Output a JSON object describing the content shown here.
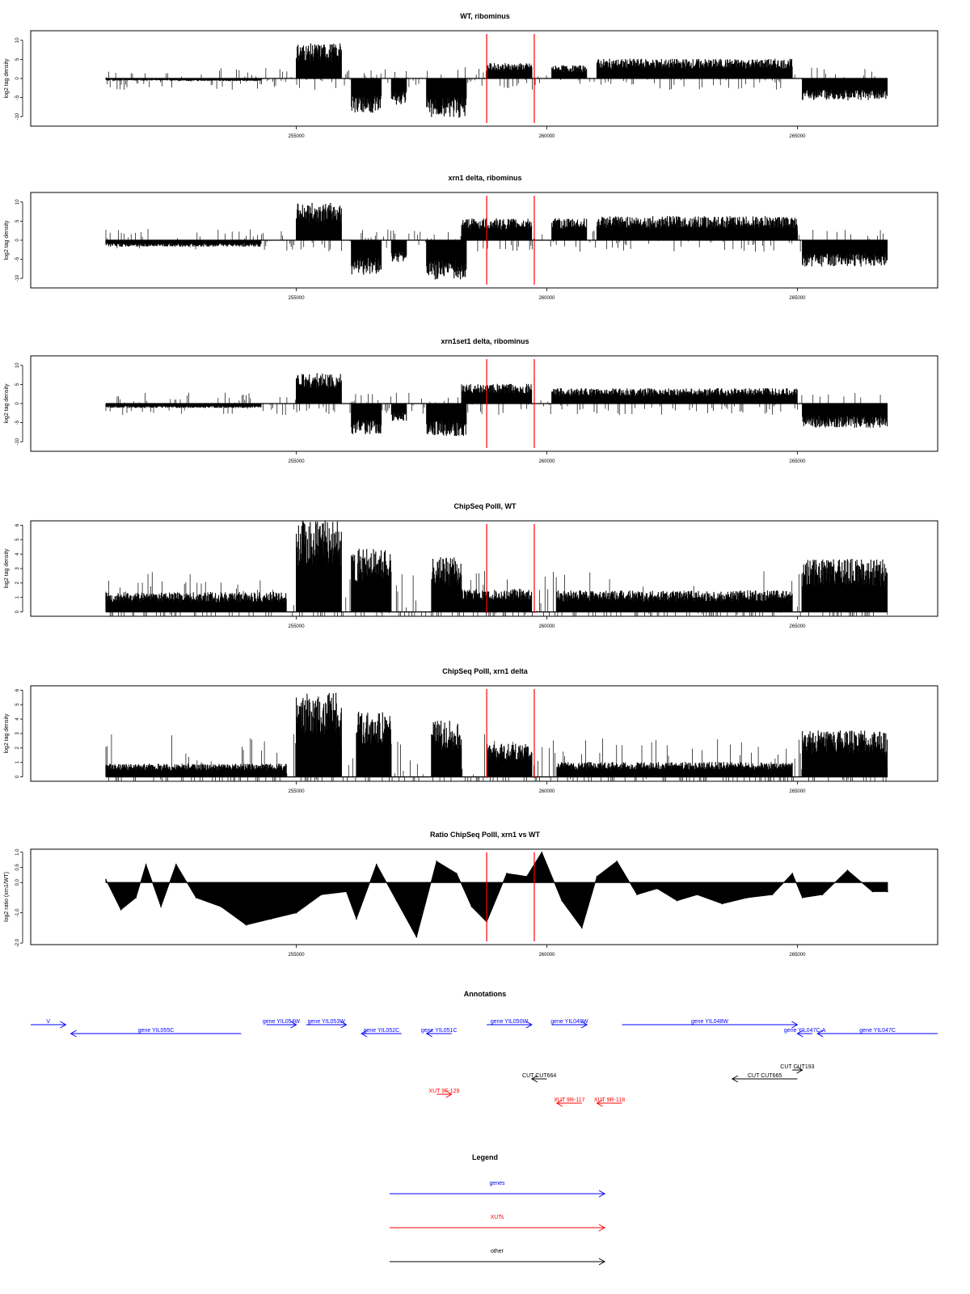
{
  "colors": {
    "gene": "#0000ff",
    "xut": "#ff0000",
    "other": "#000000",
    "marker": "#ff0000",
    "data": "#000000"
  },
  "markers": [
    258800,
    259750
  ],
  "chart_data": [
    {
      "type": "area",
      "title": "WT, ribominus",
      "ylabel": "log2 tag density",
      "xlim": [
        249700,
        267800
      ],
      "ylim": [
        -12.5,
        12.5
      ],
      "yticks": [
        10,
        5,
        0,
        -5,
        -10
      ],
      "ytick_labels": [
        "10",
        "5",
        "0",
        "-5",
        "-10"
      ],
      "xticks": [
        255000,
        260000,
        265000
      ],
      "xtick_labels": [
        "255000",
        "260000",
        "265000"
      ],
      "segments": [
        {
          "from": 251200,
          "to": 252500,
          "value": 0.5,
          "sign": -1
        },
        {
          "from": 252500,
          "to": 254300,
          "value": 0.6,
          "sign": -1
        },
        {
          "from": 255000,
          "to": 255900,
          "value": 8,
          "sign": 1
        },
        {
          "from": 256100,
          "to": 256700,
          "value": 8,
          "sign": -1
        },
        {
          "from": 256900,
          "to": 257200,
          "value": 6,
          "sign": -1
        },
        {
          "from": 257600,
          "to": 258400,
          "value": 9,
          "sign": -1
        },
        {
          "from": 258800,
          "to": 259700,
          "value": 3.5,
          "sign": 1
        },
        {
          "from": 260100,
          "to": 260800,
          "value": 3,
          "sign": 1
        },
        {
          "from": 261000,
          "to": 264900,
          "value": 4.5,
          "sign": 1
        },
        {
          "from": 265100,
          "to": 266800,
          "value": 5,
          "sign": -1
        }
      ]
    },
    {
      "type": "area",
      "title": "xrn1 delta, ribominus",
      "ylabel": "log2 tag density",
      "xlim": [
        249700,
        267800
      ],
      "ylim": [
        -12.5,
        12.5
      ],
      "yticks": [
        10,
        5,
        0,
        -5,
        -10
      ],
      "ytick_labels": [
        "10",
        "5",
        "0",
        "-5",
        "-10"
      ],
      "xticks": [
        255000,
        260000,
        265000
      ],
      "xtick_labels": [
        "255000",
        "260000",
        "265000"
      ],
      "segments": [
        {
          "from": 251200,
          "to": 254300,
          "value": 1.5,
          "sign": -1
        },
        {
          "from": 255000,
          "to": 255900,
          "value": 8.5,
          "sign": 1
        },
        {
          "from": 256100,
          "to": 256700,
          "value": 8,
          "sign": -1
        },
        {
          "from": 256900,
          "to": 257200,
          "value": 5,
          "sign": -1
        },
        {
          "from": 257600,
          "to": 258400,
          "value": 9,
          "sign": -1
        },
        {
          "from": 258300,
          "to": 259700,
          "value": 5,
          "sign": 1
        },
        {
          "from": 260100,
          "to": 260800,
          "value": 5,
          "sign": 1
        },
        {
          "from": 261000,
          "to": 265000,
          "value": 5.5,
          "sign": 1
        },
        {
          "from": 265100,
          "to": 266800,
          "value": 6,
          "sign": -1
        }
      ]
    },
    {
      "type": "area",
      "title": "xrn1set1 delta, ribominus",
      "ylabel": "log2 tag density",
      "xlim": [
        249700,
        267800
      ],
      "ylim": [
        -12.5,
        12.5
      ],
      "yticks": [
        10,
        5,
        0,
        -5,
        -10
      ],
      "ytick_labels": [
        "10",
        "5",
        "0",
        "-5",
        "-10"
      ],
      "xticks": [
        255000,
        260000,
        265000
      ],
      "xtick_labels": [
        "255000",
        "260000",
        "265000"
      ],
      "segments": [
        {
          "from": 251200,
          "to": 254300,
          "value": 1,
          "sign": -1
        },
        {
          "from": 255000,
          "to": 255900,
          "value": 7,
          "sign": 1
        },
        {
          "from": 256100,
          "to": 256700,
          "value": 7,
          "sign": -1
        },
        {
          "from": 256900,
          "to": 257200,
          "value": 4,
          "sign": -1
        },
        {
          "from": 257600,
          "to": 258400,
          "value": 7.5,
          "sign": -1
        },
        {
          "from": 258300,
          "to": 259700,
          "value": 4.5,
          "sign": 1
        },
        {
          "from": 260100,
          "to": 265000,
          "value": 3.5,
          "sign": 1
        },
        {
          "from": 265100,
          "to": 266800,
          "value": 5.5,
          "sign": -1
        }
      ]
    },
    {
      "type": "area",
      "title": "ChipSeq PolII, WT",
      "ylabel": "log2 tag density",
      "xlim": [
        249700,
        267800
      ],
      "ylim": [
        -0.3,
        6.3
      ],
      "yticks": [
        0,
        1,
        2,
        3,
        4,
        5,
        6
      ],
      "ytick_labels": [
        "0",
        "1",
        "2",
        "3",
        "4",
        "5",
        "6"
      ],
      "xticks": [
        255000,
        260000,
        265000
      ],
      "xtick_labels": [
        "255000",
        "260000",
        "265000"
      ],
      "segments": [
        {
          "from": 251200,
          "to": 254800,
          "value": 1.2,
          "sign": 1
        },
        {
          "from": 255000,
          "to": 255900,
          "value": 5.6,
          "sign": 1
        },
        {
          "from": 256100,
          "to": 256900,
          "value": 3.8,
          "sign": 1
        },
        {
          "from": 257700,
          "to": 258300,
          "value": 3.3,
          "sign": 1
        },
        {
          "from": 258300,
          "to": 259700,
          "value": 1.4,
          "sign": 1
        },
        {
          "from": 260200,
          "to": 264900,
          "value": 1.3,
          "sign": 1
        },
        {
          "from": 265100,
          "to": 266800,
          "value": 3.2,
          "sign": 1
        }
      ]
    },
    {
      "type": "area",
      "title": "ChipSeq PolII, xrn1 delta",
      "ylabel": "log2 tag density",
      "xlim": [
        249700,
        267800
      ],
      "ylim": [
        -0.3,
        6.3
      ],
      "yticks": [
        0,
        1,
        2,
        3,
        4,
        5,
        6
      ],
      "ytick_labels": [
        "0",
        "1",
        "2",
        "3",
        "4",
        "5",
        "6"
      ],
      "xticks": [
        255000,
        260000,
        265000
      ],
      "xtick_labels": [
        "255000",
        "260000",
        "265000"
      ],
      "segments": [
        {
          "from": 251200,
          "to": 254800,
          "value": 0.8,
          "sign": 1
        },
        {
          "from": 255000,
          "to": 255900,
          "value": 5.1,
          "sign": 1
        },
        {
          "from": 256200,
          "to": 256900,
          "value": 4,
          "sign": 1
        },
        {
          "from": 257700,
          "to": 258300,
          "value": 3.4,
          "sign": 1
        },
        {
          "from": 258800,
          "to": 259700,
          "value": 2,
          "sign": 1
        },
        {
          "from": 260200,
          "to": 264900,
          "value": 0.9,
          "sign": 1
        },
        {
          "from": 265100,
          "to": 266800,
          "value": 2.8,
          "sign": 1
        }
      ]
    },
    {
      "type": "area",
      "title": "Ratio ChipSeq PolII, xrn1 vs WT",
      "ylabel": "log2 ratio (xrn1/WT)",
      "xlim": [
        249700,
        267800
      ],
      "ylim": [
        -2.05,
        1.1
      ],
      "yticks": [
        1.0,
        0.5,
        0.0,
        -1.0,
        -2.0
      ],
      "ytick_labels": [
        "1.0",
        "0.5",
        "0.0",
        "-1.0",
        "-2.0"
      ],
      "xticks": [
        255000,
        260000,
        265000
      ],
      "xtick_labels": [
        "255000",
        "260000",
        "265000"
      ],
      "x": [
        251200,
        251500,
        251800,
        252000,
        252300,
        252600,
        253000,
        253500,
        254000,
        254500,
        255000,
        255500,
        256000,
        256200,
        256600,
        257000,
        257400,
        257800,
        258200,
        258500,
        258800,
        259200,
        259600,
        259900,
        260300,
        260700,
        261000,
        261400,
        261800,
        262200,
        262600,
        263000,
        263500,
        264000,
        264500,
        264900,
        265100,
        265500,
        266000,
        266500,
        266800
      ],
      "y": [
        0.1,
        -0.9,
        -0.5,
        0.6,
        -0.8,
        0.6,
        -0.5,
        -0.8,
        -1.4,
        -1.2,
        -1.0,
        -0.4,
        -0.3,
        -1.2,
        0.6,
        -0.6,
        -1.8,
        0.7,
        0.3,
        -0.8,
        -1.3,
        0.3,
        0.2,
        1.0,
        -0.6,
        -1.5,
        0.2,
        0.7,
        -0.4,
        -0.2,
        -0.6,
        -0.4,
        -0.7,
        -0.5,
        -0.4,
        0.3,
        -0.5,
        -0.4,
        0.4,
        -0.3,
        -0.3
      ]
    }
  ],
  "annotations": {
    "title": "Annotations",
    "items": [
      {
        "label": "V",
        "kind": "gene",
        "from": 249700,
        "to": 250400,
        "dir": 1,
        "row": 0
      },
      {
        "label": "gene YIL055C",
        "kind": "gene",
        "from": 250500,
        "to": 253900,
        "dir": -1,
        "row": 1
      },
      {
        "label": "gene YIL054W",
        "kind": "gene",
        "from": 254400,
        "to": 255000,
        "dir": 1,
        "row": 0
      },
      {
        "label": "gene YIL053W",
        "kind": "gene",
        "from": 255200,
        "to": 256000,
        "dir": 1,
        "row": 0
      },
      {
        "label": "gene YIL052C",
        "kind": "gene",
        "from": 256300,
        "to": 257100,
        "dir": -1,
        "row": 1
      },
      {
        "label": "gene YIL051C",
        "kind": "gene",
        "from": 257600,
        "to": 258100,
        "dir": -1,
        "row": 1
      },
      {
        "label": "gene YIL050W",
        "kind": "gene",
        "from": 258800,
        "to": 259700,
        "dir": 1,
        "row": 0
      },
      {
        "label": "gene YIL049W",
        "kind": "gene",
        "from": 260100,
        "to": 260800,
        "dir": 1,
        "row": 0
      },
      {
        "label": "gene YIL048W",
        "kind": "gene",
        "from": 261500,
        "to": 265000,
        "dir": 1,
        "row": 0
      },
      {
        "label": "gene YIL047C-A",
        "kind": "gene",
        "from": 265000,
        "to": 265300,
        "dir": -1,
        "row": 1
      },
      {
        "label": "gene YIL047C",
        "kind": "gene",
        "from": 265400,
        "to": 267800,
        "dir": -1,
        "row": 1
      },
      {
        "label": "CUT CUT193",
        "kind": "other",
        "from": 264900,
        "to": 265100,
        "dir": 1,
        "row": 2
      },
      {
        "label": "CUT CUT664",
        "kind": "other",
        "from": 259700,
        "to": 260000,
        "dir": -1,
        "row": 3
      },
      {
        "label": "CUT CUT665",
        "kind": "other",
        "from": 263700,
        "to": 265000,
        "dir": -1,
        "row": 3
      },
      {
        "label": "XUT 9F-129",
        "kind": "xut",
        "from": 257800,
        "to": 258100,
        "dir": 1,
        "row": 4
      },
      {
        "label": "XUT 9R-117",
        "kind": "xut",
        "from": 260200,
        "to": 260700,
        "dir": -1,
        "row": 5
      },
      {
        "label": "XUT 9R-118",
        "kind": "xut",
        "from": 261000,
        "to": 261500,
        "dir": -1,
        "row": 5
      }
    ]
  },
  "legend": {
    "title": "Legend",
    "entries": [
      {
        "label": "genes",
        "kind": "gene"
      },
      {
        "label": "XUTs",
        "kind": "xut"
      },
      {
        "label": "other",
        "kind": "other"
      }
    ]
  }
}
